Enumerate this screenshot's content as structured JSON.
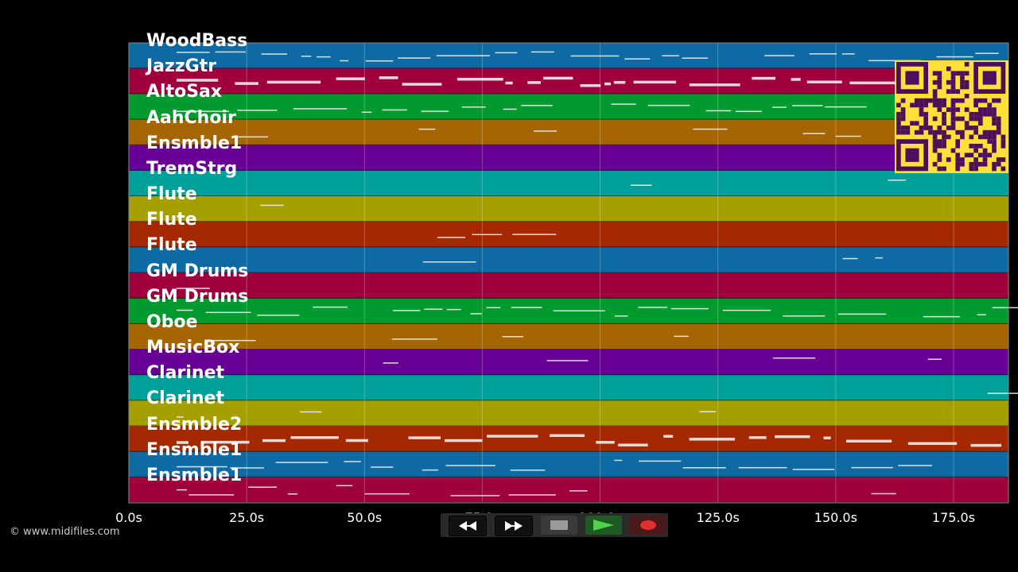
{
  "tracks": [
    {
      "name": "WoodBass",
      "color": "#0d6aa3"
    },
    {
      "name": "JazzGtr",
      "color": "#a0003c"
    },
    {
      "name": "AltoSax",
      "color": "#009a2e"
    },
    {
      "name": "AahChoir",
      "color": "#a56500"
    },
    {
      "name": "Ensmble1",
      "color": "#680096"
    },
    {
      "name": "TremStrg",
      "color": "#00a09a"
    },
    {
      "name": "Flute",
      "color": "#a5a000"
    },
    {
      "name": "Flute",
      "color": "#a52800"
    },
    {
      "name": "Flute",
      "color": "#0d6aa3"
    },
    {
      "name": "GM Drums",
      "color": "#a0003c"
    },
    {
      "name": "GM Drums",
      "color": "#009a2e"
    },
    {
      "name": "Oboe",
      "color": "#a56500"
    },
    {
      "name": "MusicBox",
      "color": "#680096"
    },
    {
      "name": "Clarinet",
      "color": "#00a09a"
    },
    {
      "name": "Clarinet",
      "color": "#a5a000"
    },
    {
      "name": "Ensmble2",
      "color": "#a52800"
    },
    {
      "name": "Ensmble1",
      "color": "#0d6aa3"
    },
    {
      "name": "Ensmble1",
      "color": "#a0003c"
    }
  ],
  "time_axis": {
    "ticks": [
      "0.0s",
      "25.0s",
      "50.0s",
      "75.0s",
      "100.0s",
      "125.0s",
      "150.0s",
      "175.0s"
    ],
    "tick_values": [
      0,
      25,
      50,
      75,
      100,
      125,
      150,
      175
    ],
    "max_seconds": 187
  },
  "copyright": "© www.midifiles.com",
  "transport": {
    "rewind_icon": "rewind-icon",
    "fast_forward_icon": "fast-forward-icon",
    "stop_icon": "stop-icon",
    "play_icon": "play-icon",
    "record_icon": "record-icon",
    "play_color": "#4fd04f",
    "record_color": "#e03030"
  },
  "qr_code": {
    "color": "#ffe03a",
    "ink": "#4b0f5c"
  }
}
